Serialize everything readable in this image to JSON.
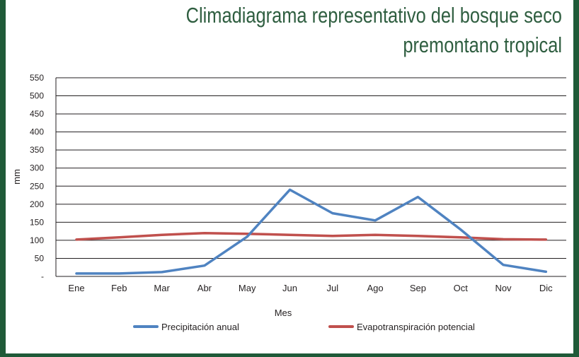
{
  "chart_data": {
    "type": "line",
    "title_lines": [
      "Climadiagrama representativo del bosque seco",
      "premontano tropical"
    ],
    "xlabel": "Mes",
    "ylabel": "mm",
    "categories": [
      "Ene",
      "Feb",
      "Mar",
      "Abr",
      "May",
      "Jun",
      "Jul",
      "Ago",
      "Sep",
      "Oct",
      "Nov",
      "Dic"
    ],
    "y_ticks": [
      "-",
      "50",
      "100",
      "150",
      "200",
      "250",
      "300",
      "350",
      "400",
      "450",
      "500",
      "550"
    ],
    "ylim": [
      0,
      550
    ],
    "grid": true,
    "legend_position": "bottom",
    "series": [
      {
        "name": "Precipitación anual",
        "color": "#4f83c1",
        "values": [
          8,
          8,
          12,
          30,
          110,
          240,
          175,
          155,
          220,
          130,
          32,
          13
        ]
      },
      {
        "name": "Evapotranspiración potencial",
        "color": "#c0504d",
        "values": [
          102,
          108,
          115,
          120,
          118,
          115,
          112,
          115,
          112,
          108,
          103,
          102
        ]
      }
    ]
  }
}
